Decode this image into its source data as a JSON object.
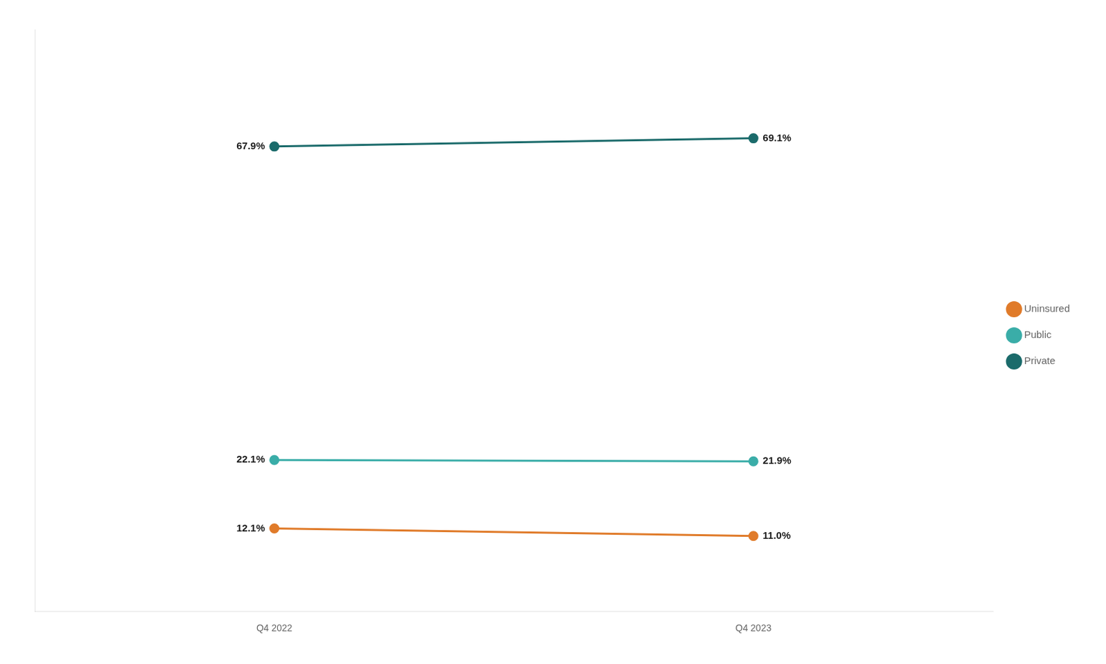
{
  "chart_data": {
    "type": "line",
    "categories": [
      "Q4 2022",
      "Q4 2023"
    ],
    "series": [
      {
        "name": "Uninsured",
        "color": "#E07B2A",
        "marker": "circle",
        "values": [
          12.1,
          11.0
        ],
        "value_labels": [
          "12.1%",
          "11.0%"
        ]
      },
      {
        "name": "Public",
        "color": "#3AADA8",
        "marker": "circle",
        "values": [
          22.1,
          21.9
        ],
        "value_labels": [
          "22.1%",
          "21.9%"
        ]
      },
      {
        "name": "Private",
        "color": "#1B6B6B",
        "marker": "circle",
        "values": [
          67.9,
          69.1
        ],
        "value_labels": [
          "67.9%",
          "69.1%"
        ]
      }
    ],
    "ylim": [
      0,
      85
    ],
    "tick_labels": "x",
    "grid": false,
    "legend": "right",
    "data_labels": true
  }
}
